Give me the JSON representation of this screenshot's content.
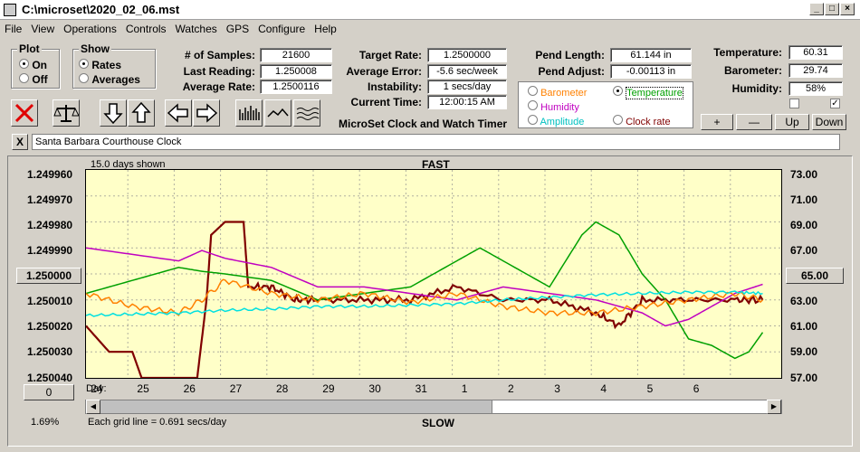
{
  "window": {
    "title": "C:\\microset\\2020_02_06.mst"
  },
  "menu": [
    "File",
    "View",
    "Operations",
    "Controls",
    "Watches",
    "GPS",
    "Configure",
    "Help"
  ],
  "plot_group": {
    "title": "Plot",
    "on": "On",
    "off": "Off",
    "selected": "On"
  },
  "show_group": {
    "title": "Show",
    "rates": "Rates",
    "averages": "Averages",
    "selected": "Rates"
  },
  "stats": {
    "samples_label": "# of Samples:",
    "samples": "21600",
    "last_label": "Last Reading:",
    "last": "1.250008",
    "avg_label": "Average Rate:",
    "avg": "1.2500116",
    "target_label": "Target Rate:",
    "target": "1.2500000",
    "error_label": "Average Error:",
    "error": "-5.6 sec/week",
    "instab_label": "Instability:",
    "instab": "1 secs/day",
    "time_label": "Current Time:",
    "time": "12:00:15 AM",
    "pend_len_label": "Pend Length:",
    "pend_len": "61.144 in",
    "pend_adj_label": "Pend Adjust:",
    "pend_adj": "-0.00113 in",
    "temp_label": "Temperature:",
    "temp": "60.31",
    "baro_label": "Barometer:",
    "baro": "29.74",
    "hum_label": "Humidity:",
    "hum": "58%"
  },
  "app_title": "MicroSet Clock and Watch Timer",
  "sensor_options": [
    {
      "label": "Barometer",
      "color": "#ff8000",
      "selected": false
    },
    {
      "label": "Temperature",
      "color": "#00a000",
      "selected": true
    },
    {
      "label": "Humidity",
      "color": "#c000c0",
      "selected": false
    },
    {
      "label": "Amplitude",
      "color": "#00c0c0",
      "selected": false
    },
    {
      "label": "Clock rate",
      "color": "#800000",
      "selected": false
    }
  ],
  "right_buttons": [
    "+",
    "—",
    "Up",
    "Down"
  ],
  "clock_name": "Santa Barbara Courthouse Clock",
  "close_label": "X",
  "chart_data": {
    "type": "line",
    "title_top": "FAST",
    "title_bottom": "SLOW",
    "days_shown": "15.0 days shown",
    "grid_note": "Each grid line = 0.691 secs/day",
    "percent": "1.69%",
    "x_label": "Day:",
    "x_ticks": [
      "24",
      "25",
      "26",
      "27",
      "28",
      "29",
      "30",
      "31",
      "1",
      "2",
      "3",
      "4",
      "5",
      "6"
    ],
    "left_ticks": [
      "1.249960",
      "1.249970",
      "1.249980",
      "1.249990",
      "1.250000",
      "1.250010",
      "1.250020",
      "1.250030",
      "1.250040"
    ],
    "left_center": "1.250000",
    "right_ticks": [
      "73.00",
      "71.00",
      "69.00",
      "67.00",
      "65.00",
      "63.00",
      "61.00",
      "59.00",
      "57.00"
    ],
    "right_center": "65.00",
    "offset_value": "0",
    "ylim_left": [
      1.24996,
      1.25004
    ],
    "ylim_right": [
      57,
      73
    ],
    "series": [
      {
        "name": "Clock rate",
        "color": "#800000",
        "width": 2.2,
        "axis": "left",
        "points": [
          [
            0,
            1.25002
          ],
          [
            0.5,
            1.25003
          ],
          [
            1,
            1.25003
          ],
          [
            1.2,
            1.25004
          ],
          [
            1.5,
            1.25004
          ],
          [
            2,
            1.25004
          ],
          [
            2.4,
            1.25004
          ],
          [
            2.6,
            1.25001
          ],
          [
            2.7,
            1.249985
          ],
          [
            3,
            1.24998
          ],
          [
            3.4,
            1.24998
          ],
          [
            3.5,
            1.250005
          ],
          [
            4,
            1.250005
          ],
          [
            4.5,
            1.25001
          ],
          [
            5,
            1.25001
          ],
          [
            6,
            1.25001
          ],
          [
            7,
            1.25001
          ],
          [
            8,
            1.250005
          ],
          [
            9,
            1.25001
          ],
          [
            10,
            1.25001
          ],
          [
            11,
            1.250015
          ],
          [
            11.5,
            1.25002
          ],
          [
            12,
            1.25001
          ],
          [
            13,
            1.25001
          ],
          [
            14,
            1.25001
          ],
          [
            14.6,
            1.25001
          ]
        ]
      },
      {
        "name": "Temperature",
        "color": "#00a000",
        "width": 1.5,
        "axis": "right",
        "points": [
          [
            0,
            63.5
          ],
          [
            1,
            64.5
          ],
          [
            2,
            65.5
          ],
          [
            2.5,
            65.2
          ],
          [
            3,
            65
          ],
          [
            4,
            64.5
          ],
          [
            5,
            63
          ],
          [
            6,
            63.5
          ],
          [
            7,
            64
          ],
          [
            8,
            66
          ],
          [
            8.5,
            67
          ],
          [
            9,
            66
          ],
          [
            10,
            64
          ],
          [
            10.7,
            68
          ],
          [
            11,
            69
          ],
          [
            11.5,
            68
          ],
          [
            12,
            65
          ],
          [
            12.5,
            63
          ],
          [
            13,
            60
          ],
          [
            13.5,
            59.5
          ],
          [
            14,
            58.5
          ],
          [
            14.3,
            59
          ],
          [
            14.6,
            60.5
          ]
        ]
      },
      {
        "name": "Humidity",
        "color": "#c000c0",
        "width": 1.5,
        "axis": "right",
        "points": [
          [
            0,
            67
          ],
          [
            1,
            66.5
          ],
          [
            2,
            66
          ],
          [
            2.5,
            66.8
          ],
          [
            3,
            66.2
          ],
          [
            4,
            65.5
          ],
          [
            5,
            64
          ],
          [
            6,
            64
          ],
          [
            7,
            63.5
          ],
          [
            8,
            63
          ],
          [
            9,
            64
          ],
          [
            10,
            63.5
          ],
          [
            11,
            63
          ],
          [
            12,
            62
          ],
          [
            12.5,
            61
          ],
          [
            13,
            61.5
          ],
          [
            13.5,
            62.5
          ],
          [
            14,
            63.5
          ],
          [
            14.6,
            64.2
          ]
        ]
      },
      {
        "name": "Barometer",
        "color": "#ff8000",
        "width": 1.5,
        "axis": "right",
        "points": [
          [
            0,
            63.5
          ],
          [
            1,
            62.5
          ],
          [
            2,
            62
          ],
          [
            2.5,
            63
          ],
          [
            3,
            64.5
          ],
          [
            4,
            63.5
          ],
          [
            5,
            63
          ],
          [
            6,
            63.5
          ],
          [
            7,
            62.8
          ],
          [
            8,
            63.5
          ],
          [
            9,
            62.5
          ],
          [
            10,
            62
          ],
          [
            11,
            62
          ],
          [
            12,
            62.5
          ],
          [
            13,
            63
          ],
          [
            14,
            63.5
          ],
          [
            14.6,
            63
          ]
        ]
      },
      {
        "name": "Amplitude",
        "color": "#00e0e0",
        "width": 1.5,
        "axis": "right",
        "points": [
          [
            0,
            61.8
          ],
          [
            1,
            61.9
          ],
          [
            2,
            62
          ],
          [
            3,
            62.2
          ],
          [
            4,
            62.3
          ],
          [
            5,
            62.5
          ],
          [
            6,
            62.5
          ],
          [
            7,
            62.6
          ],
          [
            8,
            62.7
          ],
          [
            9,
            63
          ],
          [
            10,
            63.2
          ],
          [
            11,
            63.4
          ],
          [
            12,
            63.5
          ],
          [
            13,
            63.6
          ],
          [
            14,
            63.6
          ],
          [
            14.6,
            63.5
          ]
        ]
      }
    ]
  }
}
